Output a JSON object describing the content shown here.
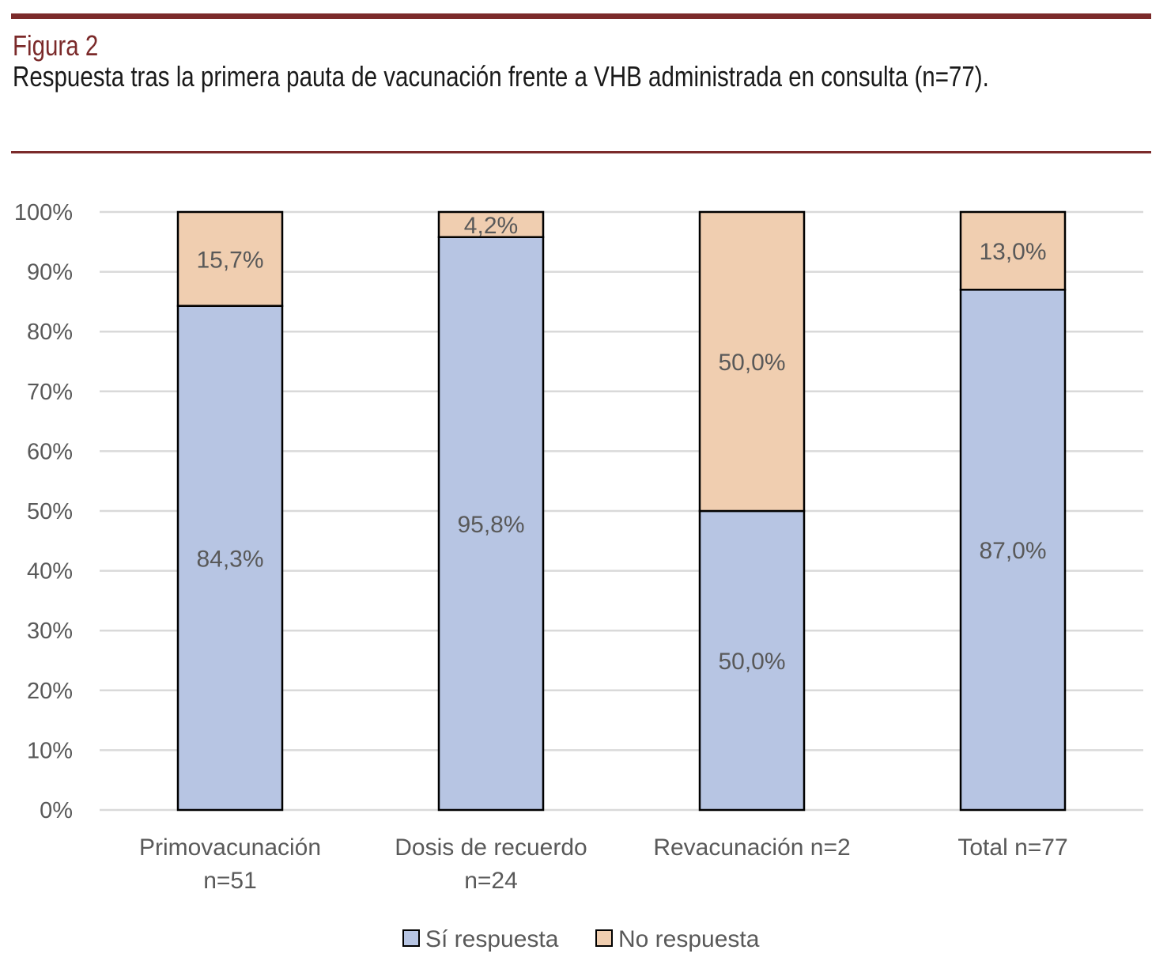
{
  "figure": {
    "label": "Figura 2",
    "title": "Respuesta tras la primera pauta de vacunación frente a VHB administrada en consulta (n=77)."
  },
  "colors": {
    "rule": "#7b2a2a",
    "si_respuesta": "#b7c5e3",
    "no_respuesta": "#f0ceb0",
    "gridline": "#d9d9d9",
    "bar_outline": "#000000",
    "text": "#595959"
  },
  "chart_data": {
    "type": "bar",
    "stacked": true,
    "categories": [
      [
        "Primovacunación",
        "n=51"
      ],
      [
        "Dosis de recuerdo",
        "n=24"
      ],
      [
        "Revacunación n=2"
      ],
      [
        "Total n=77"
      ]
    ],
    "series": [
      {
        "name": "Sí respuesta",
        "values": [
          84.3,
          95.8,
          50.0,
          87.0
        ],
        "labels": [
          "84,3%",
          "95,8%",
          "50,0%",
          "87,0%"
        ],
        "color": "#b7c5e3"
      },
      {
        "name": "No respuesta",
        "values": [
          15.7,
          4.2,
          50.0,
          13.0
        ],
        "labels": [
          "15,7%",
          "4,2%",
          "50,0%",
          "13,0%"
        ],
        "color": "#f0ceb0"
      }
    ],
    "ylim": [
      0,
      100
    ],
    "y_ticks": [
      0,
      10,
      20,
      30,
      40,
      50,
      60,
      70,
      80,
      90,
      100
    ],
    "y_tick_labels": [
      "0%",
      "10%",
      "20%",
      "30%",
      "40%",
      "50%",
      "60%",
      "70%",
      "80%",
      "90%",
      "100%"
    ],
    "grid": true,
    "legend_position": "bottom"
  }
}
